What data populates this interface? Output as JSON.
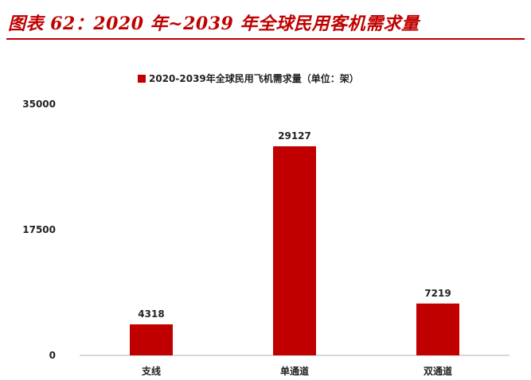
{
  "figure": {
    "title": "图表 62：2020 年~2039 年全球民用客机需求量"
  },
  "colors": {
    "accent": "#c00000",
    "bar": "#c00000",
    "axis": "#b0b0b0",
    "text": "#222222"
  },
  "chart_data": {
    "type": "bar",
    "categories": [
      "支线",
      "单通道",
      "双通道"
    ],
    "series": [
      {
        "name": "2020-2039年全球民用飞机需求量（单位：架）",
        "values": [
          4318,
          29127,
          7219
        ]
      }
    ],
    "ylim": [
      0,
      35000
    ],
    "yticks": [
      0,
      17500,
      35000
    ],
    "grid": false,
    "legend": "top-center",
    "data_labels": true
  }
}
